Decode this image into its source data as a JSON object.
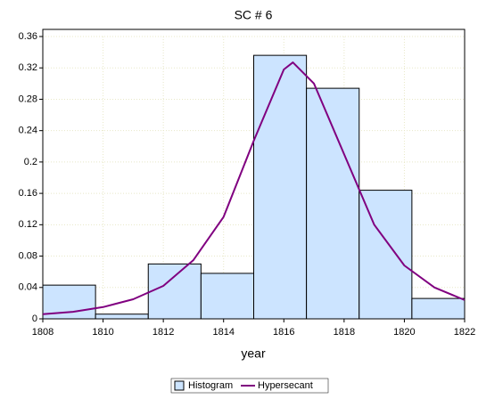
{
  "chart_data": {
    "type": "histogram",
    "title": "SC # 6",
    "xlabel": "year",
    "bins": [
      1808,
      1809.75,
      1811.5,
      1813.25,
      1815,
      1816.75,
      1818.5,
      1820.25,
      1822
    ],
    "series": [
      {
        "name": "Histogram",
        "color": "#cce4ff",
        "values": [
          0.043,
          0.006,
          0.07,
          0.058,
          0.336,
          0.294,
          0.164,
          0.026
        ]
      },
      {
        "name": "Hypersecant",
        "color": "#800080",
        "x": [
          1808,
          1809,
          1810,
          1811,
          1812,
          1813,
          1814,
          1815,
          1816,
          1816.3,
          1817,
          1818,
          1819,
          1820,
          1821,
          1822
        ],
        "values": [
          0.006,
          0.009,
          0.015,
          0.025,
          0.042,
          0.075,
          0.13,
          0.227,
          0.318,
          0.327,
          0.3,
          0.21,
          0.12,
          0.068,
          0.04,
          0.024
        ]
      }
    ],
    "xlim": [
      1808,
      1822
    ],
    "ylim": [
      0,
      0.36
    ],
    "xticks": [
      1808,
      1810,
      1812,
      1814,
      1816,
      1818,
      1820,
      1822
    ],
    "yticks": [
      0,
      0.04,
      0.08,
      0.12,
      0.16,
      0.2,
      0.24,
      0.28,
      0.32,
      0.36
    ],
    "grid": true,
    "legend": "bottom"
  }
}
